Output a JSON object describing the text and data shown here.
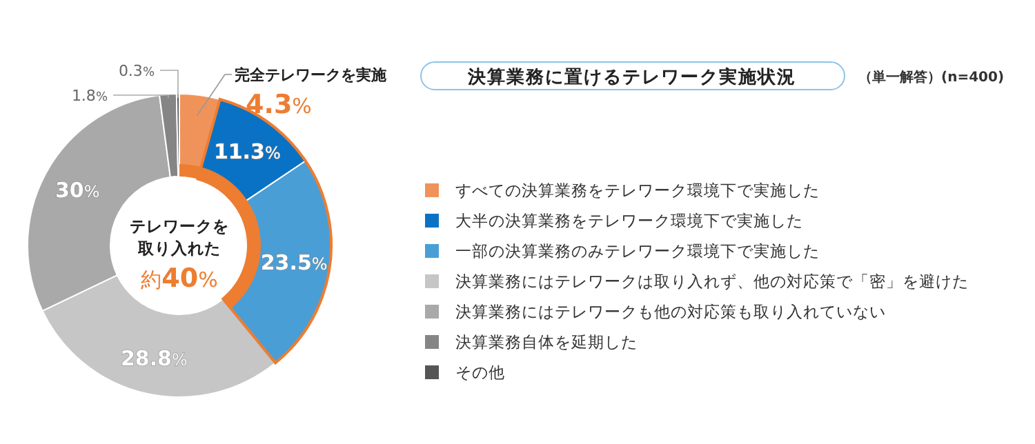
{
  "chart_data": {
    "type": "donut",
    "title": "決算業務に置けるテレワーク実施状況",
    "subtitle": "（単一解答）(n=400)",
    "categories": [
      "すべての決算業務をテレワーク環境下で実施した",
      "大半の決算業務をテレワーク環境下で実施した",
      "一部の決算業務のみテレワーク環境下で実施した",
      "決算業務にはテレワークは取り入れず、他の対応策で「密」を避けた",
      "決算業務にはテレワークも他の対応策も取り入れていない",
      "決算業務自体を延期した",
      "その他"
    ],
    "values": [
      4.3,
      11.3,
      23.5,
      28.8,
      30,
      1.8,
      0.3
    ],
    "colors": [
      "#f0935a",
      "#0a72c4",
      "#4a9ed6",
      "#c6c6c6",
      "#a9a9a9",
      "#858585",
      "#555555"
    ],
    "value_labels": [
      "4.3%",
      "11.3%",
      "23.5%",
      "28.8%",
      "30%",
      "1.8%",
      "0.3%"
    ],
    "annotations": [
      "完全テレワークを実施",
      "テレワークを取り入れた",
      "約40%"
    ],
    "legend": "right"
  }
}
